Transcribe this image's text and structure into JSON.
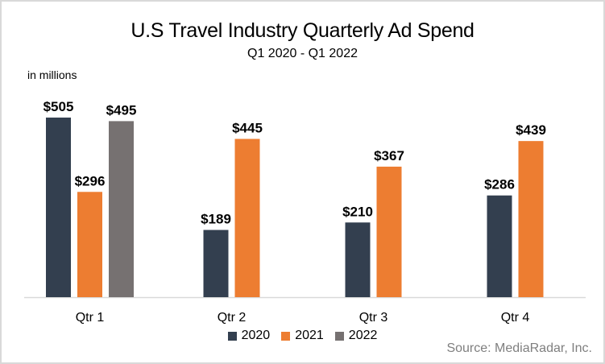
{
  "chart_data": {
    "type": "bar",
    "title": "U.S Travel Industry Quarterly Ad Spend",
    "subtitle": "Q1 2020 - Q1 2022",
    "unit_label": "in millions",
    "xlabel": "",
    "ylabel": "",
    "ylim": [
      0,
      505
    ],
    "grid": false,
    "legend_position": "bottom",
    "categories": [
      "Qtr 1",
      "Qtr 2",
      "Qtr 3",
      "Qtr 4"
    ],
    "series": [
      {
        "name": "2020",
        "color": "#333f4f",
        "values": [
          505,
          189,
          210,
          286
        ],
        "labels": [
          "$505",
          "$189",
          "$210",
          "$286"
        ]
      },
      {
        "name": "2021",
        "color": "#ed7d31",
        "values": [
          296,
          445,
          367,
          439
        ],
        "labels": [
          "$296",
          "$445",
          "$367",
          "$439"
        ]
      },
      {
        "name": "2022",
        "color": "#767171",
        "values": [
          495,
          null,
          null,
          null
        ],
        "labels": [
          "$495",
          null,
          null,
          null
        ]
      }
    ],
    "source": "Source: MediaRadar, Inc."
  }
}
